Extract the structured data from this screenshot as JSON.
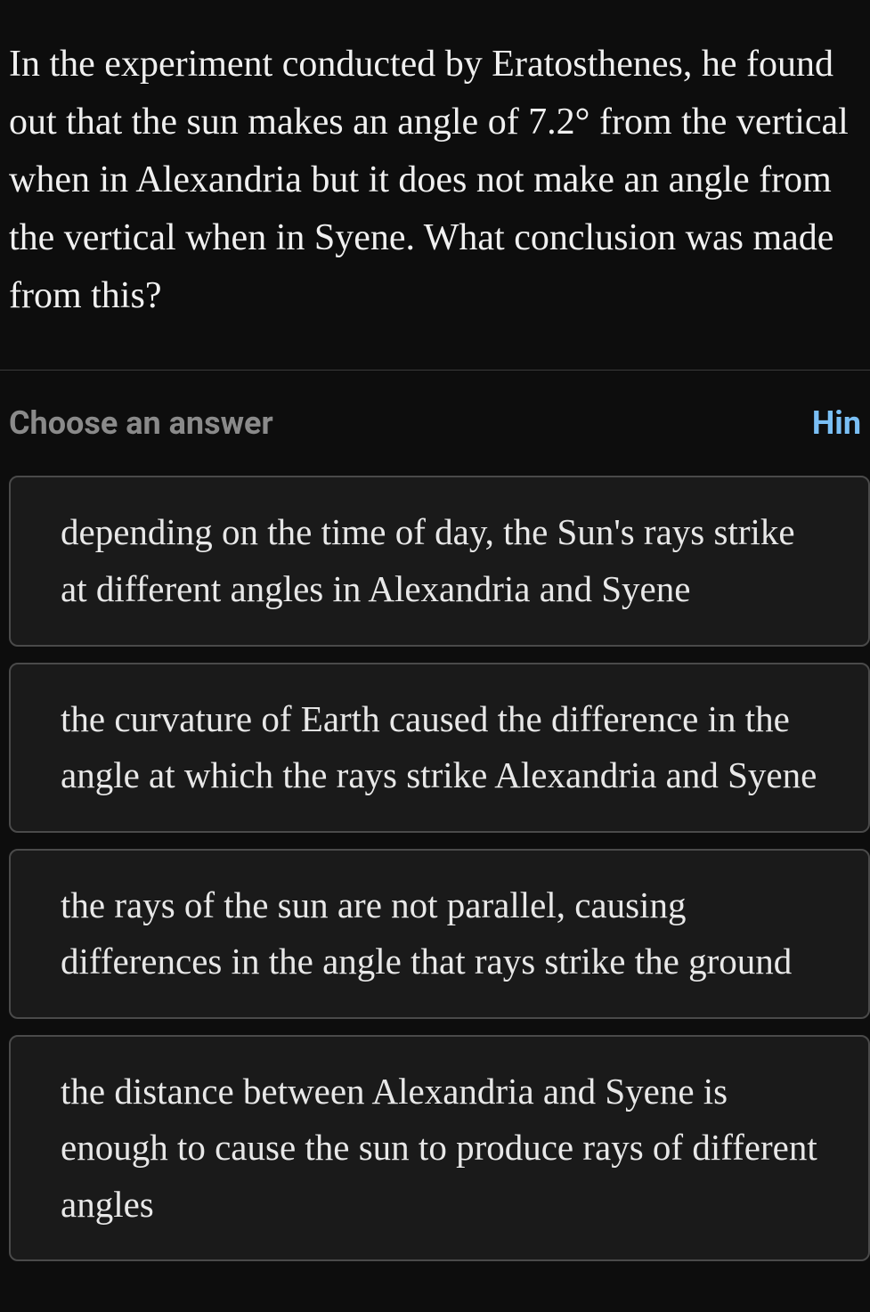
{
  "question": {
    "text": "In the experiment conducted by Eratosthenes, he found out that the sun makes an angle of 7.2° from the vertical when in Alexandria but it does not make an angle from the vertical when in Syene. What conclusion was made from this?"
  },
  "prompt": {
    "label": "Choose an answer",
    "hint_label": "Hin"
  },
  "answers": [
    {
      "text": "depending on the time of day, the Sun's rays strike at different angles in Alexandria and Syene"
    },
    {
      "text": "the curvature of Earth caused the difference in the angle at which the rays strike Alexandria and Syene"
    },
    {
      "text": "the rays of the sun are not parallel, causing differences in the angle that rays strike the ground"
    },
    {
      "text": "the distance between Alexandria and Syene is enough to cause the sun to produce rays of different angles"
    }
  ],
  "colors": {
    "background": "#0d0d0d",
    "text_primary": "#e8e8e8",
    "text_muted": "#8a8a8a",
    "link": "#7abff5",
    "option_bg": "#1a1a1a",
    "option_border": "#4a4a4a",
    "divider": "#3a3a3a"
  }
}
